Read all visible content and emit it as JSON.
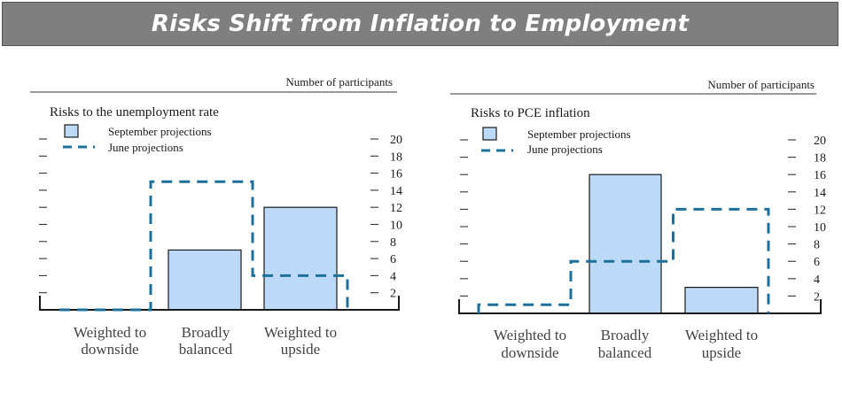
{
  "banner": {
    "title": "Risks Shift from Inflation to Employment"
  },
  "colors": {
    "bar_fill": "#bcd9f7",
    "bar_stroke": "#1a1a1a",
    "june_line": "#1f6f9b",
    "banner_bg": "#7f7f7f"
  },
  "chart_data": [
    {
      "type": "bar",
      "title": "Risks to the unemployment rate",
      "units_label": "Number of participants",
      "categories": [
        [
          "Weighted to",
          "downside"
        ],
        [
          "Broadly",
          "balanced"
        ],
        [
          "Weighted to",
          "upside"
        ]
      ],
      "series": [
        {
          "name": "September projections",
          "style": "bar",
          "values": [
            0,
            7,
            12
          ]
        },
        {
          "name": "June projections",
          "style": "dashed-step",
          "values": [
            0,
            15,
            4
          ]
        }
      ],
      "ylim": [
        0,
        20
      ],
      "yticks": [
        2,
        4,
        6,
        8,
        10,
        12,
        14,
        16,
        18,
        20
      ],
      "legend": "top-left"
    },
    {
      "type": "bar",
      "title": "Risks to PCE inflation",
      "units_label": "Number of participants",
      "categories": [
        [
          "Weighted to",
          "downside"
        ],
        [
          "Broadly",
          "balanced"
        ],
        [
          "Weighted to",
          "upside"
        ]
      ],
      "series": [
        {
          "name": "September projections",
          "style": "bar",
          "values": [
            0,
            16,
            3
          ]
        },
        {
          "name": "June projections",
          "style": "dashed-step",
          "values": [
            1,
            6,
            12
          ]
        }
      ],
      "ylim": [
        0,
        20
      ],
      "yticks": [
        2,
        4,
        6,
        8,
        10,
        12,
        14,
        16,
        18,
        20
      ],
      "legend": "top-left"
    }
  ]
}
